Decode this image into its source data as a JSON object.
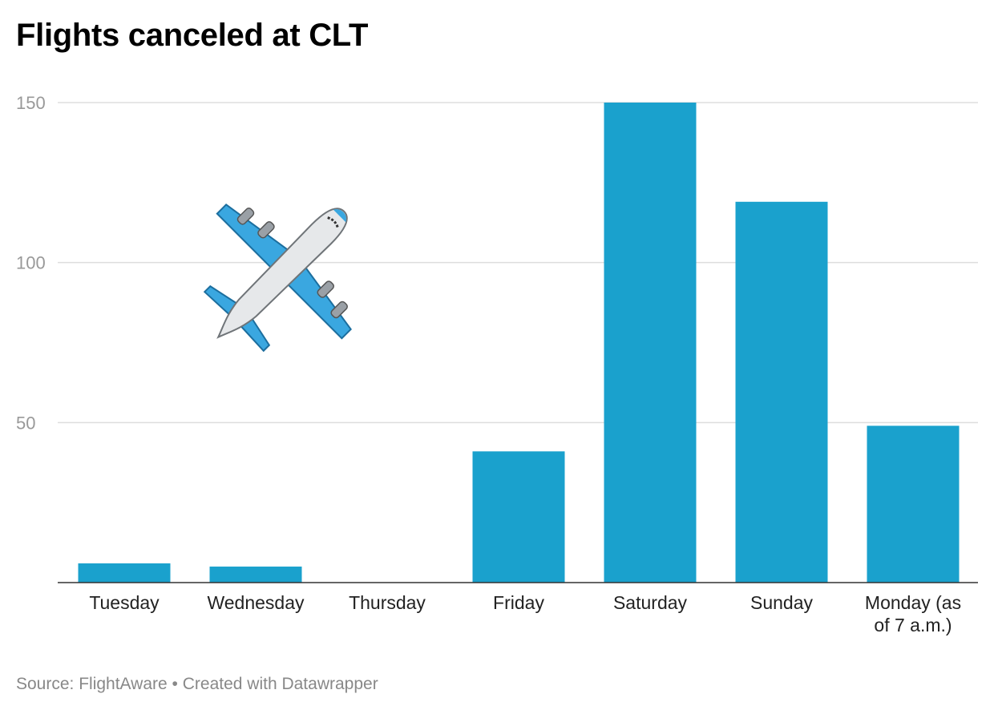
{
  "chart_data": {
    "type": "bar",
    "title": "Flights canceled at CLT",
    "categories": [
      "Tuesday",
      "Wednesday",
      "Thursday",
      "Friday",
      "Saturday",
      "Sunday",
      "Monday (as of 7 a.m.)"
    ],
    "category_lines": [
      [
        "Tuesday"
      ],
      [
        "Wednesday"
      ],
      [
        "Thursday"
      ],
      [
        "Friday"
      ],
      [
        "Saturday"
      ],
      [
        "Sunday"
      ],
      [
        "Monday (as",
        "of 7 a.m.)"
      ]
    ],
    "values": [
      6,
      5,
      0,
      41,
      150,
      119,
      49
    ],
    "yticks": [
      50,
      100,
      150
    ],
    "ylim": [
      0,
      150
    ],
    "xlabel": "",
    "ylabel": "",
    "grid": true,
    "bar_color": "#1aa1cd",
    "annotation_icon": "airplane-icon"
  },
  "footer": {
    "source": "Source: FlightAware",
    "separator": " • ",
    "credit": "Created with Datawrapper"
  }
}
